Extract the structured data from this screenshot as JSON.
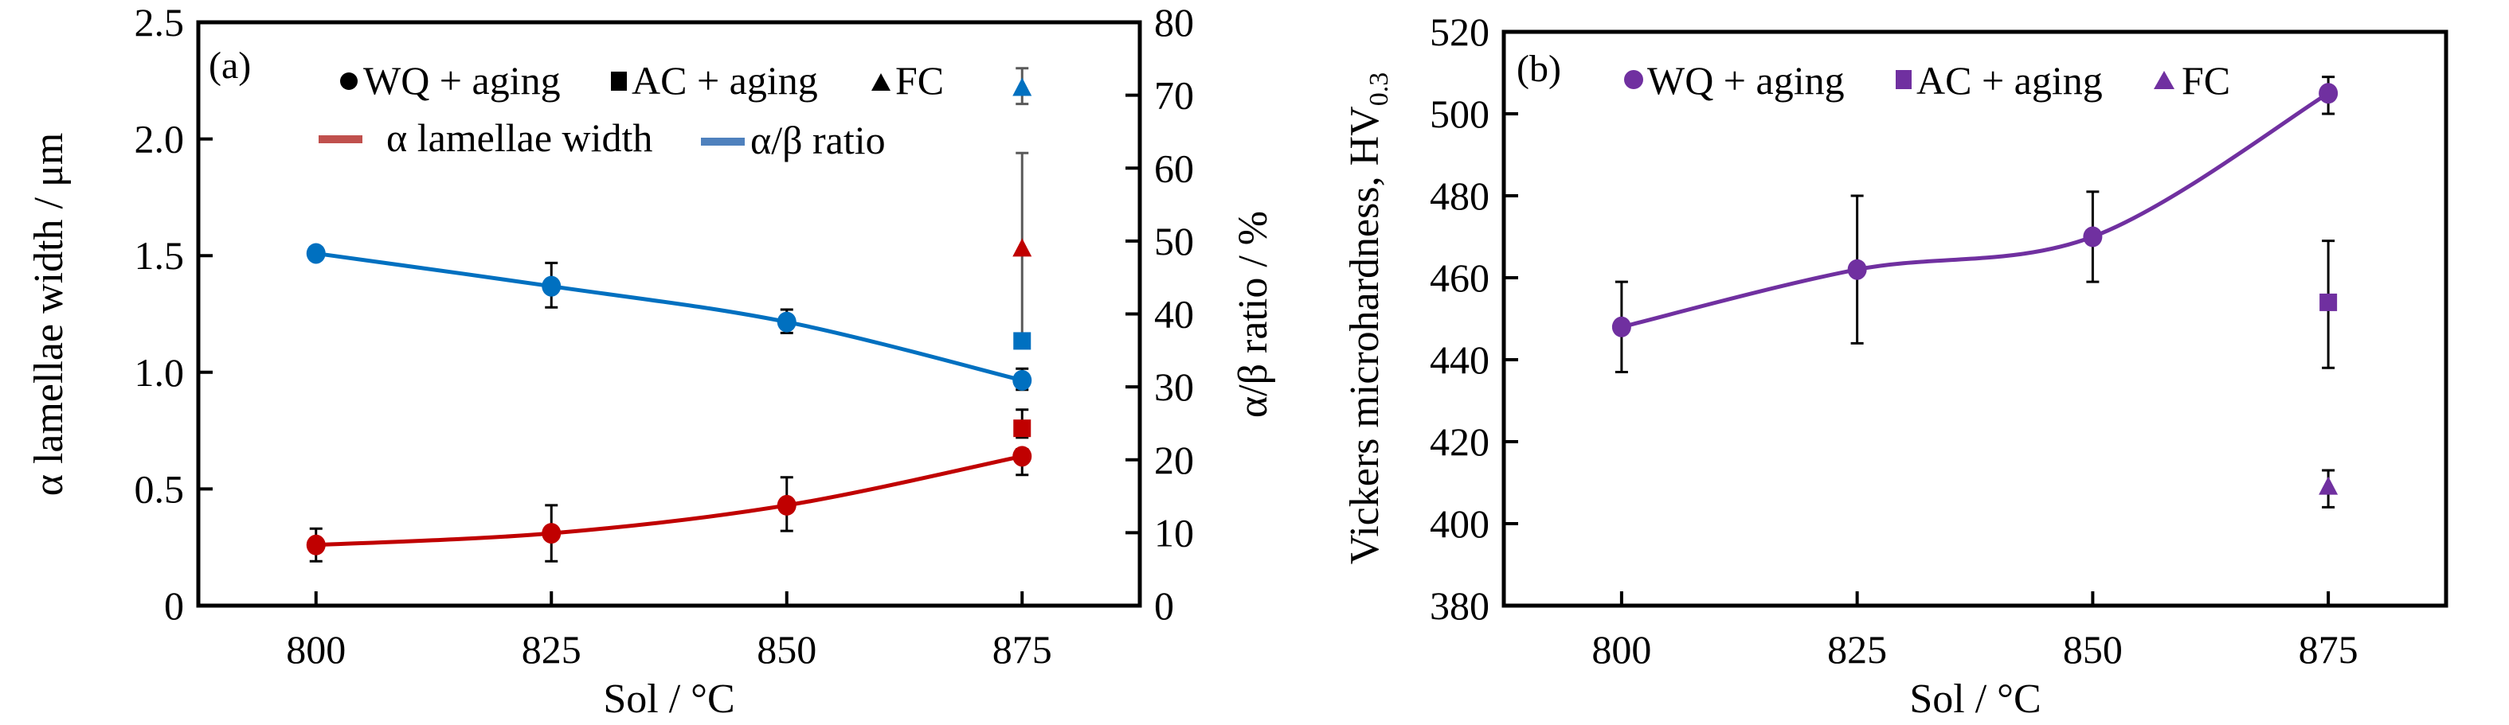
{
  "chart_data": [
    {
      "type": "line",
      "panel_label": "(a)",
      "xlabel": "Sol / °C",
      "ylabel": "α lamellae width / μm",
      "y2label": "α/β ratio / %",
      "x_ticks": [
        800,
        825,
        850,
        875
      ],
      "x_tick_labels": [
        "800",
        "825",
        "850",
        "875"
      ],
      "xlim": [
        787.5,
        887.5
      ],
      "ylim": [
        0,
        2.5
      ],
      "y_ticks": [
        0,
        0.5,
        1.0,
        1.5,
        2.0,
        2.5
      ],
      "y_tick_labels": [
        "0",
        "0.5",
        "1.0",
        "1.5",
        "2.0",
        "2.5"
      ],
      "y2lim": [
        0,
        80
      ],
      "y2_ticks": [
        0,
        10,
        20,
        30,
        40,
        50,
        60,
        70,
        80
      ],
      "y2_tick_labels": [
        "0",
        "10",
        "20",
        "30",
        "40",
        "50",
        "60",
        "70",
        "80"
      ],
      "grid": false,
      "legend": {
        "placement": "top",
        "marker_entries": [
          {
            "label": "WQ + aging",
            "marker": "circle"
          },
          {
            "label": "AC + aging",
            "marker": "square"
          },
          {
            "label": "FC",
            "marker": "triangle"
          }
        ],
        "line_entries": [
          {
            "label": "α lamellae width",
            "color": "#c0504d"
          },
          {
            "label": "α/β ratio",
            "color": "#4f81bd"
          }
        ]
      },
      "series": [
        {
          "name": "α lamellae width — WQ + aging",
          "axis": "left",
          "marker": "circle",
          "color": "#c00000",
          "connected": true,
          "x": [
            800,
            825,
            850,
            875
          ],
          "y": [
            0.26,
            0.31,
            0.43,
            0.64
          ],
          "err_low": [
            0.19,
            0.19,
            0.32,
            0.56
          ],
          "err_high": [
            0.33,
            0.43,
            0.55,
            0.67
          ],
          "err_color": "#000000"
        },
        {
          "name": "α lamellae width — AC + aging",
          "axis": "left",
          "marker": "square",
          "color": "#c00000",
          "connected": false,
          "x": [
            875
          ],
          "y": [
            0.76
          ],
          "err_low": [
            0.72
          ],
          "err_high": [
            0.84
          ],
          "err_color": "#000000"
        },
        {
          "name": "α lamellae width — FC",
          "axis": "left",
          "marker": "triangle",
          "color": "#c00000",
          "connected": false,
          "x": [
            875
          ],
          "y": [
            1.53
          ],
          "err_low": [
            1.15
          ],
          "err_high": [
            1.94
          ],
          "err_color": "#595959"
        },
        {
          "name": "α/β ratio — WQ + aging",
          "axis": "right",
          "marker": "circle",
          "color": "#0070c0",
          "connected": true,
          "x": [
            800,
            825,
            850,
            875
          ],
          "y": [
            48.3,
            43.8,
            38.9,
            30.9
          ],
          "err_low": [
            48.3,
            40.9,
            37.4,
            29.6
          ],
          "err_high": [
            48.3,
            47.0,
            40.6,
            32.5
          ],
          "err_color": "#000000"
        },
        {
          "name": "α/β ratio — AC + aging",
          "axis": "right",
          "marker": "square",
          "color": "#0070c0",
          "connected": false,
          "x": [
            875
          ],
          "y": [
            36.3
          ],
          "err_low": [
            36.3
          ],
          "err_high": [
            36.3
          ],
          "err_color": "#595959"
        },
        {
          "name": "α/β ratio — FC",
          "axis": "right",
          "marker": "triangle",
          "color": "#0070c0",
          "connected": false,
          "x": [
            875
          ],
          "y": [
            71.0
          ],
          "err_low": [
            68.8
          ],
          "err_high": [
            73.7
          ],
          "err_color": "#595959"
        }
      ]
    },
    {
      "type": "line",
      "panel_label": "(b)",
      "xlabel": "Sol / °C",
      "ylabel": "Vickers microhardness, HV",
      "ylabel_subscript": "0.3",
      "x_ticks": [
        800,
        825,
        850,
        875
      ],
      "x_tick_labels": [
        "800",
        "825",
        "850",
        "875"
      ],
      "xlim": [
        787.5,
        887.5
      ],
      "ylim": [
        380,
        520
      ],
      "y_ticks": [
        380,
        400,
        420,
        440,
        460,
        480,
        500,
        520
      ],
      "y_tick_labels": [
        "380",
        "400",
        "420",
        "440",
        "460",
        "480",
        "500",
        "520"
      ],
      "grid": false,
      "legend": {
        "placement": "top",
        "marker_entries": [
          {
            "label": "WQ + aging",
            "marker": "circle"
          },
          {
            "label": "AC + aging",
            "marker": "square"
          },
          {
            "label": "FC",
            "marker": "triangle"
          }
        ]
      },
      "series": [
        {
          "name": "WQ + aging",
          "marker": "circle",
          "color": "#7030a0",
          "connected": true,
          "x": [
            800,
            825,
            850,
            875
          ],
          "y": [
            448,
            462,
            470,
            505
          ],
          "err_low": [
            437,
            444,
            459,
            500
          ],
          "err_high": [
            459,
            480,
            481,
            509
          ],
          "err_color": "#000000"
        },
        {
          "name": "AC + aging",
          "marker": "square",
          "color": "#7030a0",
          "connected": false,
          "x": [
            875
          ],
          "y": [
            454
          ],
          "err_low": [
            438
          ],
          "err_high": [
            469
          ],
          "err_color": "#000000"
        },
        {
          "name": "FC",
          "marker": "triangle",
          "color": "#7030a0",
          "connected": false,
          "x": [
            875
          ],
          "y": [
            409
          ],
          "err_low": [
            404
          ],
          "err_high": [
            413
          ],
          "err_color": "#000000"
        }
      ]
    }
  ]
}
